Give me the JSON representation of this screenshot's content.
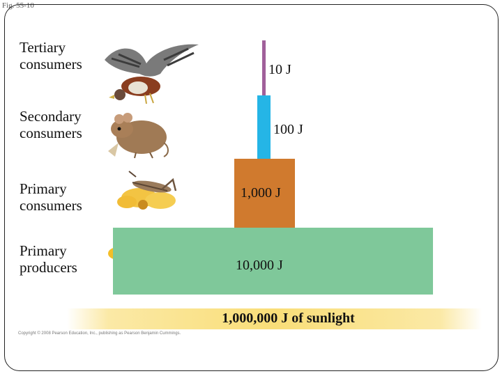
{
  "figure_label": "Fig. 55-10",
  "levels": [
    {
      "label_line1": "Tertiary",
      "label_line2": "consumers",
      "energy": "10 J",
      "color": "#a0609a"
    },
    {
      "label_line1": "Secondary",
      "label_line2": "consumers",
      "energy": "100 J",
      "color": "#25b5e6"
    },
    {
      "label_line1": "Primary",
      "label_line2": "consumers",
      "energy": "1,000 J",
      "color": "#d07a2e"
    },
    {
      "label_line1": "Primary",
      "label_line2": "producers",
      "energy": "10,000 J",
      "color": "#7fc89a"
    }
  ],
  "sunlight": "1,000,000 J of sunlight",
  "copyright": "Copyright © 2008 Pearson Education, Inc., publishing as Pearson Benjamin Cummings.",
  "icons": [
    "hawk-icon",
    "mouse-icon",
    "grasshopper-icon",
    "flower-icon"
  ]
}
